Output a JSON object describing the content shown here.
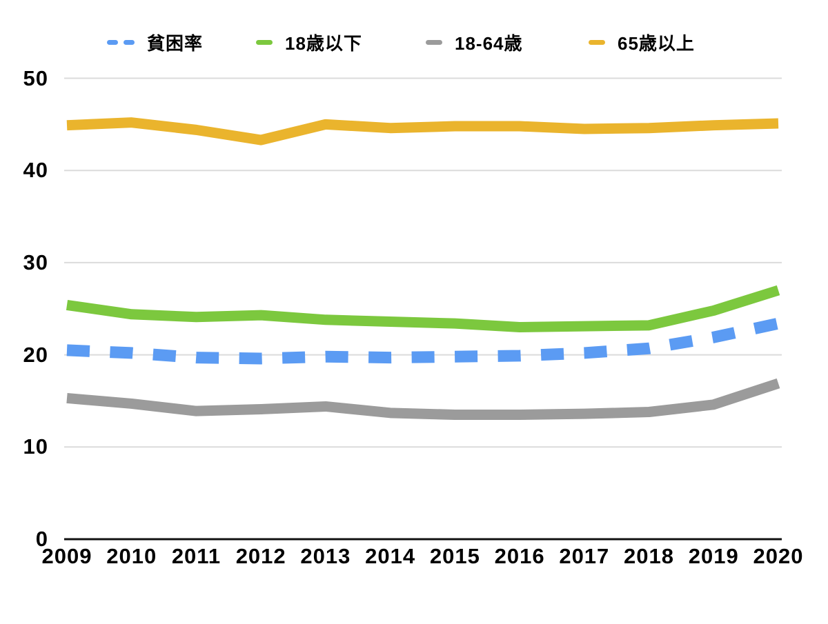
{
  "chart_data": {
    "type": "line",
    "title": "",
    "xlabel": "",
    "ylabel": "",
    "x": [
      2009,
      2010,
      2011,
      2012,
      2013,
      2014,
      2015,
      2016,
      2017,
      2018,
      2019,
      2020
    ],
    "y_ticks": [
      50,
      40,
      30,
      20,
      10,
      0
    ],
    "ylim": [
      0,
      50
    ],
    "grid": "horizontal",
    "legend_position": "top",
    "axis_color": "#111111",
    "gridline_color": "#dbdbdb",
    "series": [
      {
        "name": "貧困率",
        "color": "#5B9BF3",
        "style": "dashed",
        "values": [
          20.5,
          20.2,
          19.7,
          19.6,
          19.8,
          19.7,
          19.8,
          19.9,
          20.2,
          20.7,
          21.9,
          23.4
        ]
      },
      {
        "name": "18歳以下",
        "color": "#7CC83E",
        "style": "solid",
        "values": [
          25.4,
          24.4,
          24.1,
          24.3,
          23.8,
          23.6,
          23.4,
          23.0,
          23.1,
          23.2,
          24.8,
          27.0
        ]
      },
      {
        "name": "18-64歳",
        "color": "#9B9B9B",
        "style": "solid",
        "values": [
          15.3,
          14.7,
          13.9,
          14.1,
          14.4,
          13.7,
          13.5,
          13.5,
          13.6,
          13.8,
          14.6,
          16.9
        ]
      },
      {
        "name": "65歳以上",
        "color": "#EAB42D",
        "style": "solid",
        "values": [
          44.9,
          45.2,
          44.4,
          43.3,
          45.0,
          44.6,
          44.8,
          44.8,
          44.5,
          44.6,
          44.9,
          45.1
        ]
      }
    ]
  }
}
